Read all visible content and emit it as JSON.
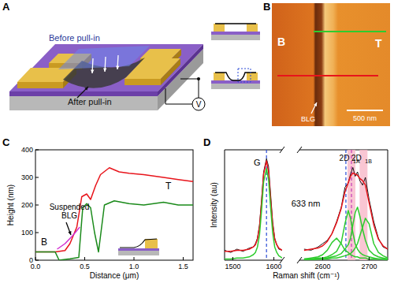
{
  "figure": {
    "A": {
      "label": "A",
      "before": "Before pull-in",
      "after": "After pull-in",
      "voltage": "V"
    },
    "B": {
      "label": "B",
      "left": "B",
      "right": "T",
      "flake": "BLG",
      "scale_bar": "500 nm"
    }
  },
  "chart_data": [
    {
      "label": "C",
      "type": "line",
      "xlabel": "Distance (μm)",
      "ylabel": "Height (nm)",
      "xlim": [
        0,
        1.6
      ],
      "xticks": [
        {
          "value": 0,
          "label": "0.0"
        },
        0.5,
        {
          "value": 1,
          "label": "1.0"
        },
        1.5
      ],
      "ylim": [
        0,
        400
      ],
      "yticks": [
        0,
        100,
        200,
        300,
        400
      ],
      "series": [
        {
          "color": "#e8141b",
          "x": [
            0,
            0.2,
            0.3,
            0.35,
            0.42,
            0.47,
            0.52,
            0.56,
            0.61,
            0.66,
            0.75,
            0.85,
            0.95,
            1.1,
            1.3,
            1.45,
            1.6
          ],
          "values": [
            30,
            30,
            35,
            60,
            120,
            230,
            240,
            220,
            270,
            310,
            335,
            320,
            315,
            310,
            300,
            292,
            285
          ]
        },
        {
          "color": "#1a8a1a",
          "x": [
            0,
            0.2,
            0.24,
            0.35,
            0.44,
            0.48,
            0.52,
            0.56,
            0.6,
            0.64,
            0.7,
            0.8,
            0.95,
            1.1,
            1.3,
            1.45,
            1.6
          ],
          "values": [
            30,
            30,
            0,
            5,
            10,
            190,
            205,
            190,
            100,
            30,
            200,
            215,
            205,
            200,
            210,
            200,
            200
          ]
        },
        {
          "color": "#d12fd1",
          "x": [
            0.22,
            0.3,
            0.38,
            0.45
          ],
          "values": [
            40,
            60,
            90,
            120
          ]
        }
      ],
      "annotations": [
        {
          "lines": [
            "Suspended",
            "BLG"
          ]
        },
        {
          "text": "T"
        },
        {
          "text": "B"
        }
      ]
    },
    {
      "label": "D",
      "type": "line",
      "ylabel": "Intensity (au)",
      "xlabel": "Raman shift (cm⁻¹)",
      "xlim": [
        1480,
        1620
      ],
      "xticks": [
        1500,
        1600
      ],
      "ylim": [
        0,
        100
      ],
      "tick_labels": "x",
      "series": [
        {
          "color": "#000000",
          "x": [
            1480,
            1495,
            1510,
            1525,
            1540,
            1550,
            1555,
            1560,
            1565,
            1570,
            1575,
            1582,
            1587,
            1592,
            1597,
            1602,
            1607,
            1612,
            1620
          ],
          "values": [
            9,
            7,
            10,
            8,
            11,
            12,
            15,
            20,
            32,
            55,
            80,
            92,
            85,
            60,
            35,
            20,
            14,
            10,
            9
          ]
        },
        {
          "color": "#e8141b",
          "x": [
            1480,
            1495,
            1510,
            1525,
            1540,
            1550,
            1555,
            1560,
            1565,
            1570,
            1575,
            1582,
            1587,
            1592,
            1597,
            1602,
            1607,
            1612,
            1620
          ],
          "values": [
            8,
            8,
            9,
            9,
            10,
            12,
            14,
            19,
            30,
            52,
            78,
            90,
            80,
            55,
            32,
            19,
            14,
            11,
            9
          ]
        },
        {
          "color": "#2ecc2e",
          "x": [
            1480,
            1495,
            1510,
            1525,
            1540,
            1550,
            1555,
            1560,
            1565,
            1570,
            1575,
            1582,
            1587,
            1592,
            1597,
            1602,
            1607,
            1612,
            1620
          ],
          "values": [
            1,
            1,
            2,
            2,
            3,
            5,
            7,
            12,
            23,
            45,
            71,
            83,
            73,
            48,
            25,
            12,
            7,
            4,
            2
          ]
        }
      ],
      "reference_lines": [
        {
          "x": 1582,
          "color": "#2b4bd6",
          "line_style": "dashed"
        }
      ],
      "peak_labels": [
        {
          "text": "G",
          "x": 1582
        }
      ]
    },
    {
      "type": "line",
      "xlim": [
        2550,
        2740
      ],
      "xticks": [
        2600,
        2700
      ],
      "ylim": [
        0,
        100
      ],
      "tick_labels": "x",
      "series": [
        {
          "color": "#000000",
          "x": [
            2560,
            2575,
            2590,
            2600,
            2610,
            2620,
            2630,
            2640,
            2648,
            2655,
            2660,
            2665,
            2670,
            2675,
            2680,
            2686,
            2692,
            2700,
            2710,
            2720,
            2730,
            2740
          ],
          "values": [
            10,
            9,
            12,
            15,
            18,
            24,
            35,
            48,
            66,
            70,
            78,
            84,
            76,
            80,
            72,
            68,
            75,
            55,
            35,
            20,
            12,
            10
          ]
        },
        {
          "color": "#e8141b",
          "x": [
            2560,
            2575,
            2590,
            2600,
            2610,
            2620,
            2630,
            2640,
            2648,
            2655,
            2660,
            2665,
            2670,
            2675,
            2680,
            2686,
            2692,
            2700,
            2710,
            2720,
            2730,
            2740
          ],
          "values": [
            9,
            10,
            11,
            13,
            17,
            24,
            34,
            47,
            62,
            70,
            76,
            79,
            78,
            77,
            74,
            72,
            68,
            52,
            32,
            19,
            13,
            10
          ]
        },
        {
          "color": "#2ecc2e",
          "x": [
            2560,
            2575,
            2590,
            2600,
            2610,
            2620,
            2630,
            2640,
            2648,
            2655,
            2660,
            2665,
            2670,
            2675,
            2680,
            2686,
            2692,
            2700,
            2710,
            2720,
            2730,
            2740
          ],
          "values": [
            1,
            2,
            3,
            5,
            9,
            16,
            20,
            15,
            9,
            7,
            5,
            4,
            3,
            3,
            2,
            2,
            2,
            1,
            1,
            1,
            1,
            0
          ]
        },
        {
          "color": "#2ecc2e",
          "x": [
            2560,
            2575,
            2590,
            2600,
            2610,
            2620,
            2630,
            2640,
            2648,
            2655,
            2660,
            2665,
            2670,
            2675,
            2680,
            2686,
            2692,
            2700,
            2710,
            2720,
            2730,
            2740
          ],
          "values": [
            1,
            1,
            2,
            2,
            3,
            5,
            8,
            16,
            33,
            45,
            38,
            25,
            15,
            10,
            7,
            5,
            4,
            3,
            2,
            1,
            1,
            1
          ]
        },
        {
          "color": "#2ecc2e",
          "x": [
            2560,
            2575,
            2590,
            2600,
            2610,
            2620,
            2630,
            2640,
            2648,
            2655,
            2660,
            2665,
            2670,
            2675,
            2680,
            2686,
            2692,
            2700,
            2710,
            2720,
            2730,
            2740
          ],
          "values": [
            0,
            1,
            1,
            1,
            2,
            3,
            4,
            6,
            10,
            14,
            20,
            32,
            43,
            48,
            40,
            28,
            18,
            9,
            5,
            3,
            2,
            1
          ]
        },
        {
          "color": "#2ecc2e",
          "x": [
            2560,
            2575,
            2590,
            2600,
            2610,
            2620,
            2630,
            2640,
            2648,
            2655,
            2660,
            2665,
            2670,
            2675,
            2680,
            2686,
            2692,
            2700,
            2710,
            2720,
            2730,
            2740
          ],
          "values": [
            0,
            0,
            1,
            1,
            1,
            2,
            2,
            3,
            4,
            5,
            6,
            8,
            11,
            15,
            22,
            30,
            38,
            33,
            15,
            7,
            4,
            2
          ]
        }
      ],
      "reference_lines": [
        {
          "x": 2650,
          "color": "#2b4bd6",
          "line_style": "dashed"
        },
        {
          "x": 2662,
          "color": "#c43bb8",
          "line_style": "dashed"
        }
      ],
      "bands": [
        {
          "x": 2662,
          "color": "#f7b8c8"
        },
        {
          "x": 2688,
          "color": "#f7b8c8"
        }
      ],
      "peak_labels": [
        {
          "text": "2D",
          "sub": "1A",
          "x": 2662
        },
        {
          "text": "2D",
          "sub": "1B",
          "x": 2688
        }
      ],
      "annotations": [
        {
          "text": "633 nm"
        }
      ]
    }
  ]
}
